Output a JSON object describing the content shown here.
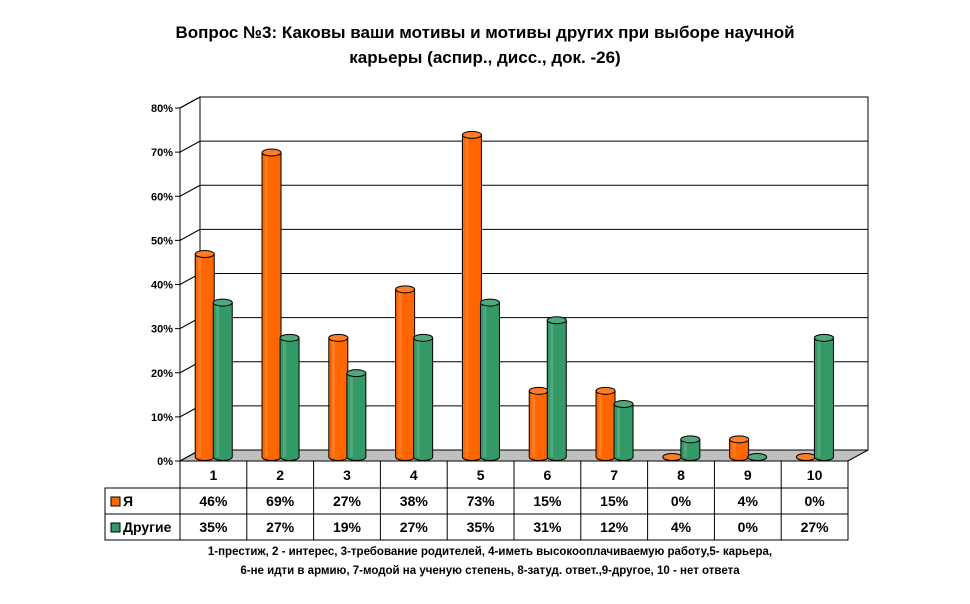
{
  "title_line1": "Вопрос №3: Каковы ваши мотивы и мотивы других при выборе научной",
  "title_line2": "карьеры (аспир., дисс., док. -26)",
  "footnote_line1": "1-престиж, 2 - интерес, 3-требование родителей, 4-иметь высокооплачиваемую работу,5- карьера,",
  "footnote_line2": "6-не идти в армию, 7-модой на ученую степень, 8-затуд. ответ.,9-другое, 10 - нет ответа",
  "colors": {
    "series_1": "#ff6600",
    "series_2": "#339966",
    "plot_area": "#ffffff",
    "grid": "#000000"
  },
  "chart_data": {
    "type": "bar",
    "title": "Вопрос №3: Каковы ваши мотивы и мотивы других при выборе научной карьеры (аспир., дисс., док. -26)",
    "categories": [
      "1",
      "2",
      "3",
      "4",
      "5",
      "6",
      "7",
      "8",
      "9",
      "10"
    ],
    "series": [
      {
        "name": "Я",
        "values": [
          46,
          69,
          27,
          38,
          73,
          15,
          15,
          0,
          4,
          0
        ],
        "labels": [
          "46%",
          "69%",
          "27%",
          "38%",
          "73%",
          "15%",
          "15%",
          "0%",
          "4%",
          "0%"
        ]
      },
      {
        "name": "Другие",
        "values": [
          35,
          27,
          19,
          27,
          35,
          31,
          12,
          4,
          0,
          27
        ],
        "labels": [
          "35%",
          "27%",
          "19%",
          "27%",
          "35%",
          "31%",
          "12%",
          "4%",
          "0%",
          "27%"
        ]
      }
    ],
    "y_ticks": [
      "0%",
      "10%",
      "20%",
      "30%",
      "40%",
      "50%",
      "60%",
      "70%",
      "80%"
    ],
    "ylim": [
      0,
      80
    ],
    "grid": true,
    "legend": "data-table",
    "bar_style": "3d-cylinder"
  }
}
